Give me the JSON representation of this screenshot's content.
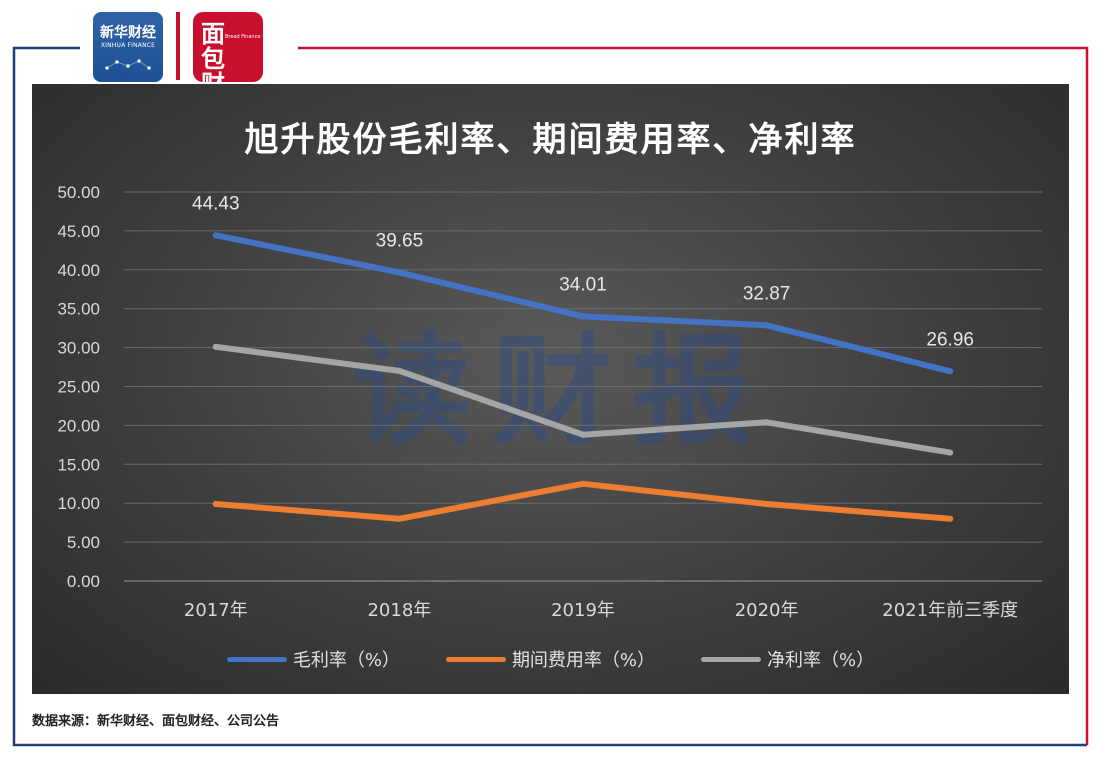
{
  "logos": {
    "xinhua": {
      "name": "新华财经",
      "sub": "XINHUA FINANCE"
    },
    "mianbao": {
      "glyph": "面包财经",
      "sub": "Bread Finance"
    }
  },
  "watermark": "读财报",
  "source_note": "数据来源：新华财经、面包财经、公司公告",
  "colors": {
    "frame_blue": "#1f3f7a",
    "frame_red": "#c8102e"
  },
  "chart_data": {
    "type": "line",
    "title": "旭升股份毛利率、期间费用率、净利率",
    "categories": [
      "2017年",
      "2018年",
      "2019年",
      "2020年",
      "2021年前三季度"
    ],
    "ylim": [
      0,
      50
    ],
    "yticks": [
      "0.00",
      "5.00",
      "10.00",
      "15.00",
      "20.00",
      "25.00",
      "30.00",
      "35.00",
      "40.00",
      "45.00",
      "50.00"
    ],
    "grid": true,
    "legend": "bottom",
    "series": [
      {
        "name": "毛利率（%）",
        "color": "#4472c4",
        "values": [
          44.43,
          39.65,
          34.01,
          32.87,
          26.96
        ],
        "labels": [
          "44.43",
          "39.65",
          "34.01",
          "32.87",
          "26.96"
        ]
      },
      {
        "name": "期间费用率（%）",
        "color": "#ed7d31",
        "values": [
          9.9,
          8.0,
          12.5,
          9.9,
          8.0
        ]
      },
      {
        "name": "净利率（%）",
        "color": "#a5a5a5",
        "values": [
          30.1,
          27.0,
          18.8,
          20.4,
          16.5
        ]
      }
    ]
  }
}
